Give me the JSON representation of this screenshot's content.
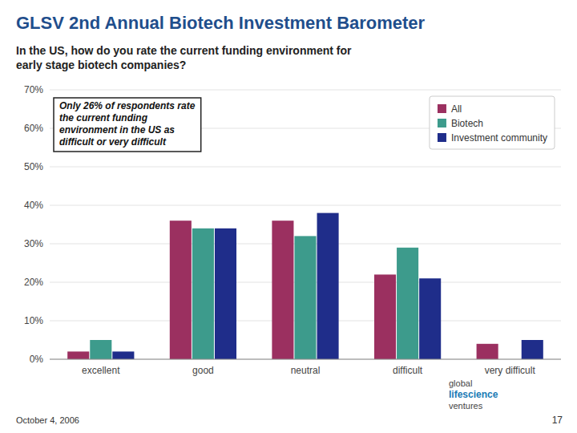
{
  "chart_data": {
    "type": "bar",
    "title": "GLSV 2nd Annual Biotech Investment Barometer",
    "subtitle": "In the US, how do you rate the current funding environment for\nearly stage biotech companies?",
    "categories": [
      "excellent",
      "good",
      "neutral",
      "difficult",
      "very difficult"
    ],
    "series": [
      {
        "name": "All",
        "color": "#9B3060",
        "values": [
          2,
          36,
          36,
          22,
          4
        ]
      },
      {
        "name": "Biotech",
        "color": "#3D9B8C",
        "values": [
          5,
          34,
          32,
          29,
          0
        ]
      },
      {
        "name": "Investment community",
        "color": "#1F2D8A",
        "values": [
          2,
          34,
          38,
          21,
          5
        ]
      }
    ],
    "ylim": [
      0,
      70
    ],
    "yticks": [
      {
        "value": 0,
        "label": "0%"
      },
      {
        "value": 10,
        "label": "10%"
      },
      {
        "value": 20,
        "label": "20%"
      },
      {
        "value": 30,
        "label": "30%"
      },
      {
        "value": 40,
        "label": "40%"
      },
      {
        "value": 50,
        "label": "50%"
      },
      {
        "value": 60,
        "label": "60%"
      },
      {
        "value": 70,
        "label": "70%"
      }
    ],
    "grid": true,
    "legend": "upper right",
    "annotations": [
      "Only 26% of respondents rate\nthe current funding\nenvironment in the US as\ndifficult or very difficult",
      "global",
      "lifescience",
      "ventures",
      "October 4, 2006",
      "17"
    ]
  }
}
